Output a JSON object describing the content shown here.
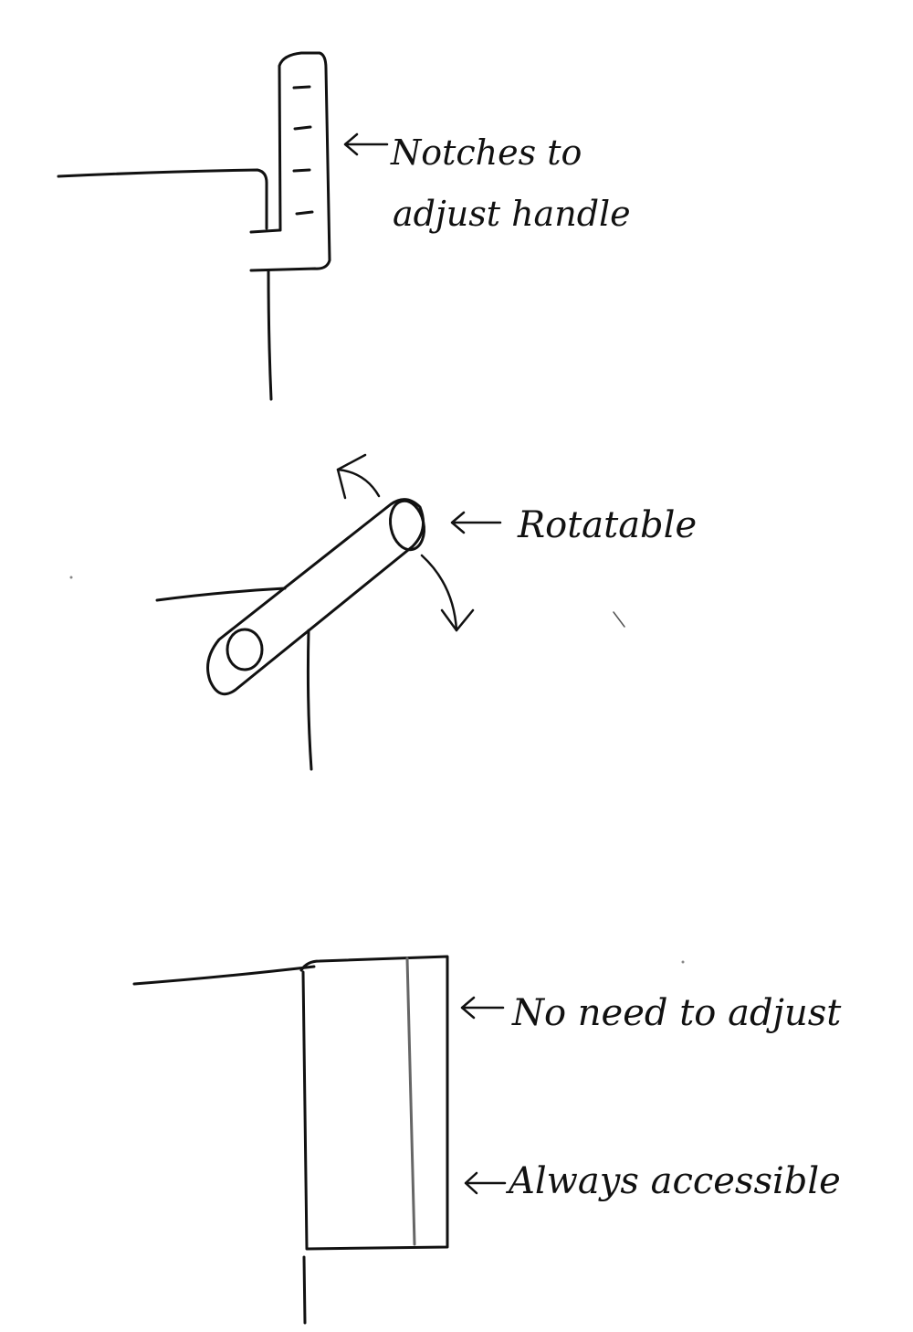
{
  "colors": {
    "paper": "#ffffff",
    "ink": "#111111",
    "pencil": "#555555"
  },
  "annotations": {
    "notches": {
      "line1": "Notches to",
      "line2": "adjust handle"
    },
    "rotatable": "Rotatable",
    "no_need": "No need to adjust",
    "always_accessible": "Always accessible"
  },
  "icons": {
    "annotation_arrow": "left-arrow-icon",
    "rotation_arrow_up": "curved-arrow-up-icon",
    "rotation_arrow_down": "curved-arrow-down-icon"
  }
}
